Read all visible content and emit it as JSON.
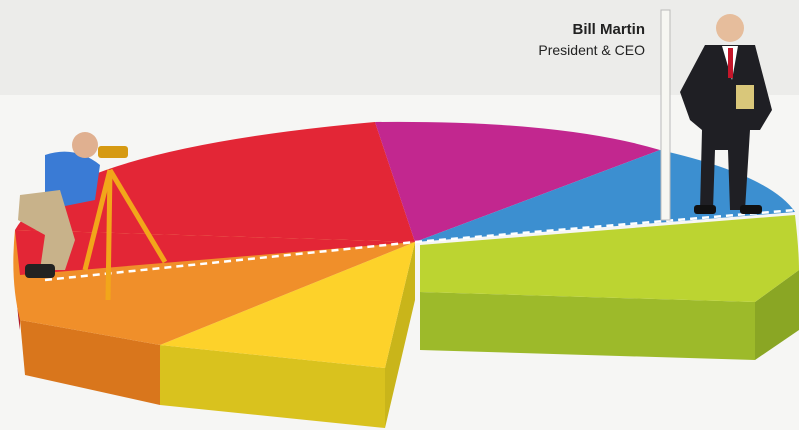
{
  "caption": {
    "name": "Bill Martin",
    "title": "President & CEO"
  }
}
